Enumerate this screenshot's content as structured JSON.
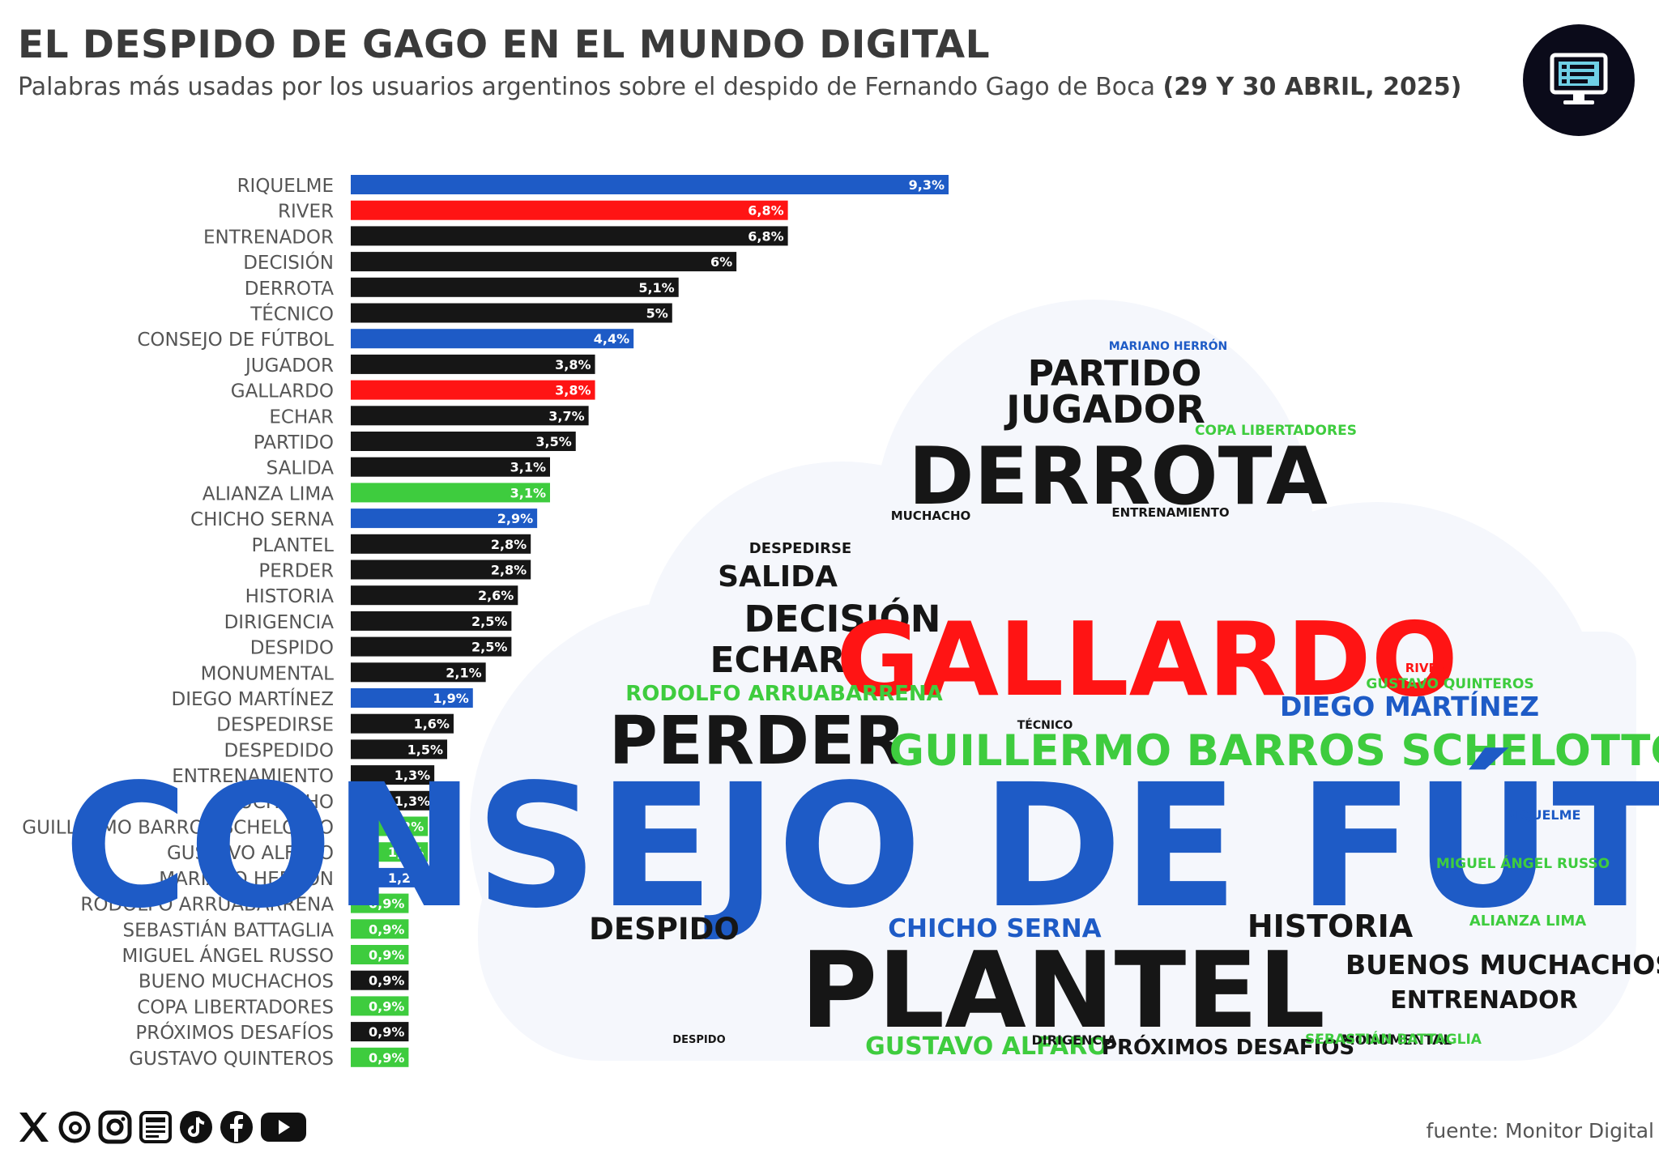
{
  "header": {
    "title": "EL DESPIDO DE GAGO EN EL MUNDO DIGITAL",
    "subtitle_main": "Palabras más usadas por los usuarios argentinos sobre el despido de Fernando Gago de Boca",
    "subtitle_date": "(29 Y 30 ABRIL, 2025)"
  },
  "footer": {
    "source": "fuente: Monitor Digital",
    "social_icons": [
      "x-icon",
      "threads-icon",
      "instagram-icon",
      "newsletter-icon",
      "tiktok-icon",
      "facebook-icon",
      "youtube-icon"
    ]
  },
  "brand_icon": "monitor-icon",
  "colors": {
    "blue": "#1e5bc6",
    "red": "#ff1414",
    "black": "#161616",
    "green": "#3ecc3e"
  },
  "chart_data": {
    "type": "bar",
    "orientation": "horizontal",
    "xlim": [
      0,
      9.3
    ],
    "grid": false,
    "legend": "none",
    "categories": [
      "RIQUELME",
      "RIVER",
      "ENTRENADOR",
      "DECISIÓN",
      "DERROTA",
      "TÉCNICO",
      "CONSEJO DE FÚTBOL",
      "JUGADOR",
      "GALLARDO",
      "ECHAR",
      "PARTIDO",
      "SALIDA",
      "ALIANZA LIMA",
      "CHICHO SERNA",
      "PLANTEL",
      "PERDER",
      "HISTORIA",
      "DIRIGENCIA",
      "DESPIDO",
      "MONUMENTAL",
      "DIEGO MARTÍNEZ",
      "DESPEDIRSE",
      "DESPEDIDO",
      "ENTRENAMIENTO",
      "MUCHACHO",
      "GUILLERMO BARROS SCHELOTTO",
      "GUSTAVO ALFARO",
      "MARIANO HERRÓN",
      "RODOLFO ARRUABARRENA",
      "SEBASTIÁN BATTAGLIA",
      "MIGUEL ÁNGEL RUSSO",
      "BUENO MUCHACHOS",
      "COPA LIBERTADORES",
      "PRÓXIMOS DESAFÍOS",
      "GUSTAVO QUINTEROS"
    ],
    "values": [
      9.3,
      6.8,
      6.8,
      6.0,
      5.1,
      5.0,
      4.4,
      3.8,
      3.8,
      3.7,
      3.5,
      3.1,
      3.1,
      2.9,
      2.8,
      2.8,
      2.6,
      2.5,
      2.5,
      2.1,
      1.9,
      1.6,
      1.5,
      1.3,
      1.3,
      1.2,
      1.2,
      1.2,
      0.9,
      0.9,
      0.9,
      0.9,
      0.9,
      0.9,
      0.9
    ],
    "value_labels": [
      "9,3%",
      "6,8%",
      "6,8%",
      "6%",
      "5,1%",
      "5%",
      "4,4%",
      "3,8%",
      "3,8%",
      "3,7%",
      "3,5%",
      "3,1%",
      "3,1%",
      "2,9%",
      "2,8%",
      "2,8%",
      "2,6%",
      "2,5%",
      "2,5%",
      "2,1%",
      "1,9%",
      "1,6%",
      "1,5%",
      "1,3%",
      "1,3%",
      "1,2%",
      "1,2%",
      "1,2%",
      "0,9%",
      "0,9%",
      "0,9%",
      "0,9%",
      "0,9%",
      "0,9%",
      "0,9%"
    ],
    "bar_colors": [
      "blue",
      "red",
      "black",
      "black",
      "black",
      "black",
      "blue",
      "black",
      "red",
      "black",
      "black",
      "black",
      "green",
      "blue",
      "black",
      "black",
      "black",
      "black",
      "black",
      "black",
      "blue",
      "black",
      "black",
      "black",
      "black",
      "green",
      "green",
      "blue",
      "green",
      "green",
      "green",
      "black",
      "green",
      "black",
      "green"
    ]
  },
  "word_cloud": [
    {
      "text": "MARIANO HERRÓN",
      "color": "blue"
    },
    {
      "text": "PARTIDO",
      "color": "black"
    },
    {
      "text": "JUGADOR",
      "color": "black"
    },
    {
      "text": "COPA LIBERTADORES",
      "color": "green"
    },
    {
      "text": "DERROTA",
      "color": "black"
    },
    {
      "text": "MUCHACHO",
      "color": "black"
    },
    {
      "text": "ENTRENAMIENTO",
      "color": "black"
    },
    {
      "text": "DESPEDIRSE",
      "color": "black"
    },
    {
      "text": "SALIDA",
      "color": "black"
    },
    {
      "text": "DECISIÓN",
      "color": "black"
    },
    {
      "text": "ECHAR",
      "color": "black"
    },
    {
      "text": "GALLARDO",
      "color": "red"
    },
    {
      "text": "RIVER",
      "color": "red"
    },
    {
      "text": "GUSTAVO QUINTEROS",
      "color": "green"
    },
    {
      "text": "RODOLFO ARRUABARRENA",
      "color": "green"
    },
    {
      "text": "DIEGO MARTÍNEZ",
      "color": "blue"
    },
    {
      "text": "PERDER",
      "color": "black"
    },
    {
      "text": "TÉCNICO",
      "color": "black"
    },
    {
      "text": "GUILLERMO BARROS SCHELOTTO",
      "color": "green"
    },
    {
      "text": "CONSEJO DE FÚTBOL",
      "color": "blue"
    },
    {
      "text": "RIQUELME",
      "color": "blue"
    },
    {
      "text": "MIGUEL ÁNGEL RUSSO",
      "color": "green"
    },
    {
      "text": "DESPIDO",
      "color": "black"
    },
    {
      "text": "CHICHO SERNA",
      "color": "blue"
    },
    {
      "text": "HISTORIA",
      "color": "black"
    },
    {
      "text": "ALIANZA LIMA",
      "color": "green"
    },
    {
      "text": "BUENOS MUCHACHOS",
      "color": "black"
    },
    {
      "text": "PLANTEL",
      "color": "black"
    },
    {
      "text": "ENTRENADOR",
      "color": "black"
    },
    {
      "text": "DESPIDO",
      "color": "black"
    },
    {
      "text": "GUSTAVO ALFARO",
      "color": "green"
    },
    {
      "text": "DIRIGENCIA",
      "color": "black"
    },
    {
      "text": "PRÓXIMOS DESAFÍOS",
      "color": "black"
    },
    {
      "text": "MONUMENTAL",
      "color": "black"
    },
    {
      "text": "SEBASTIÁN BATTAGLIA",
      "color": "green"
    }
  ]
}
